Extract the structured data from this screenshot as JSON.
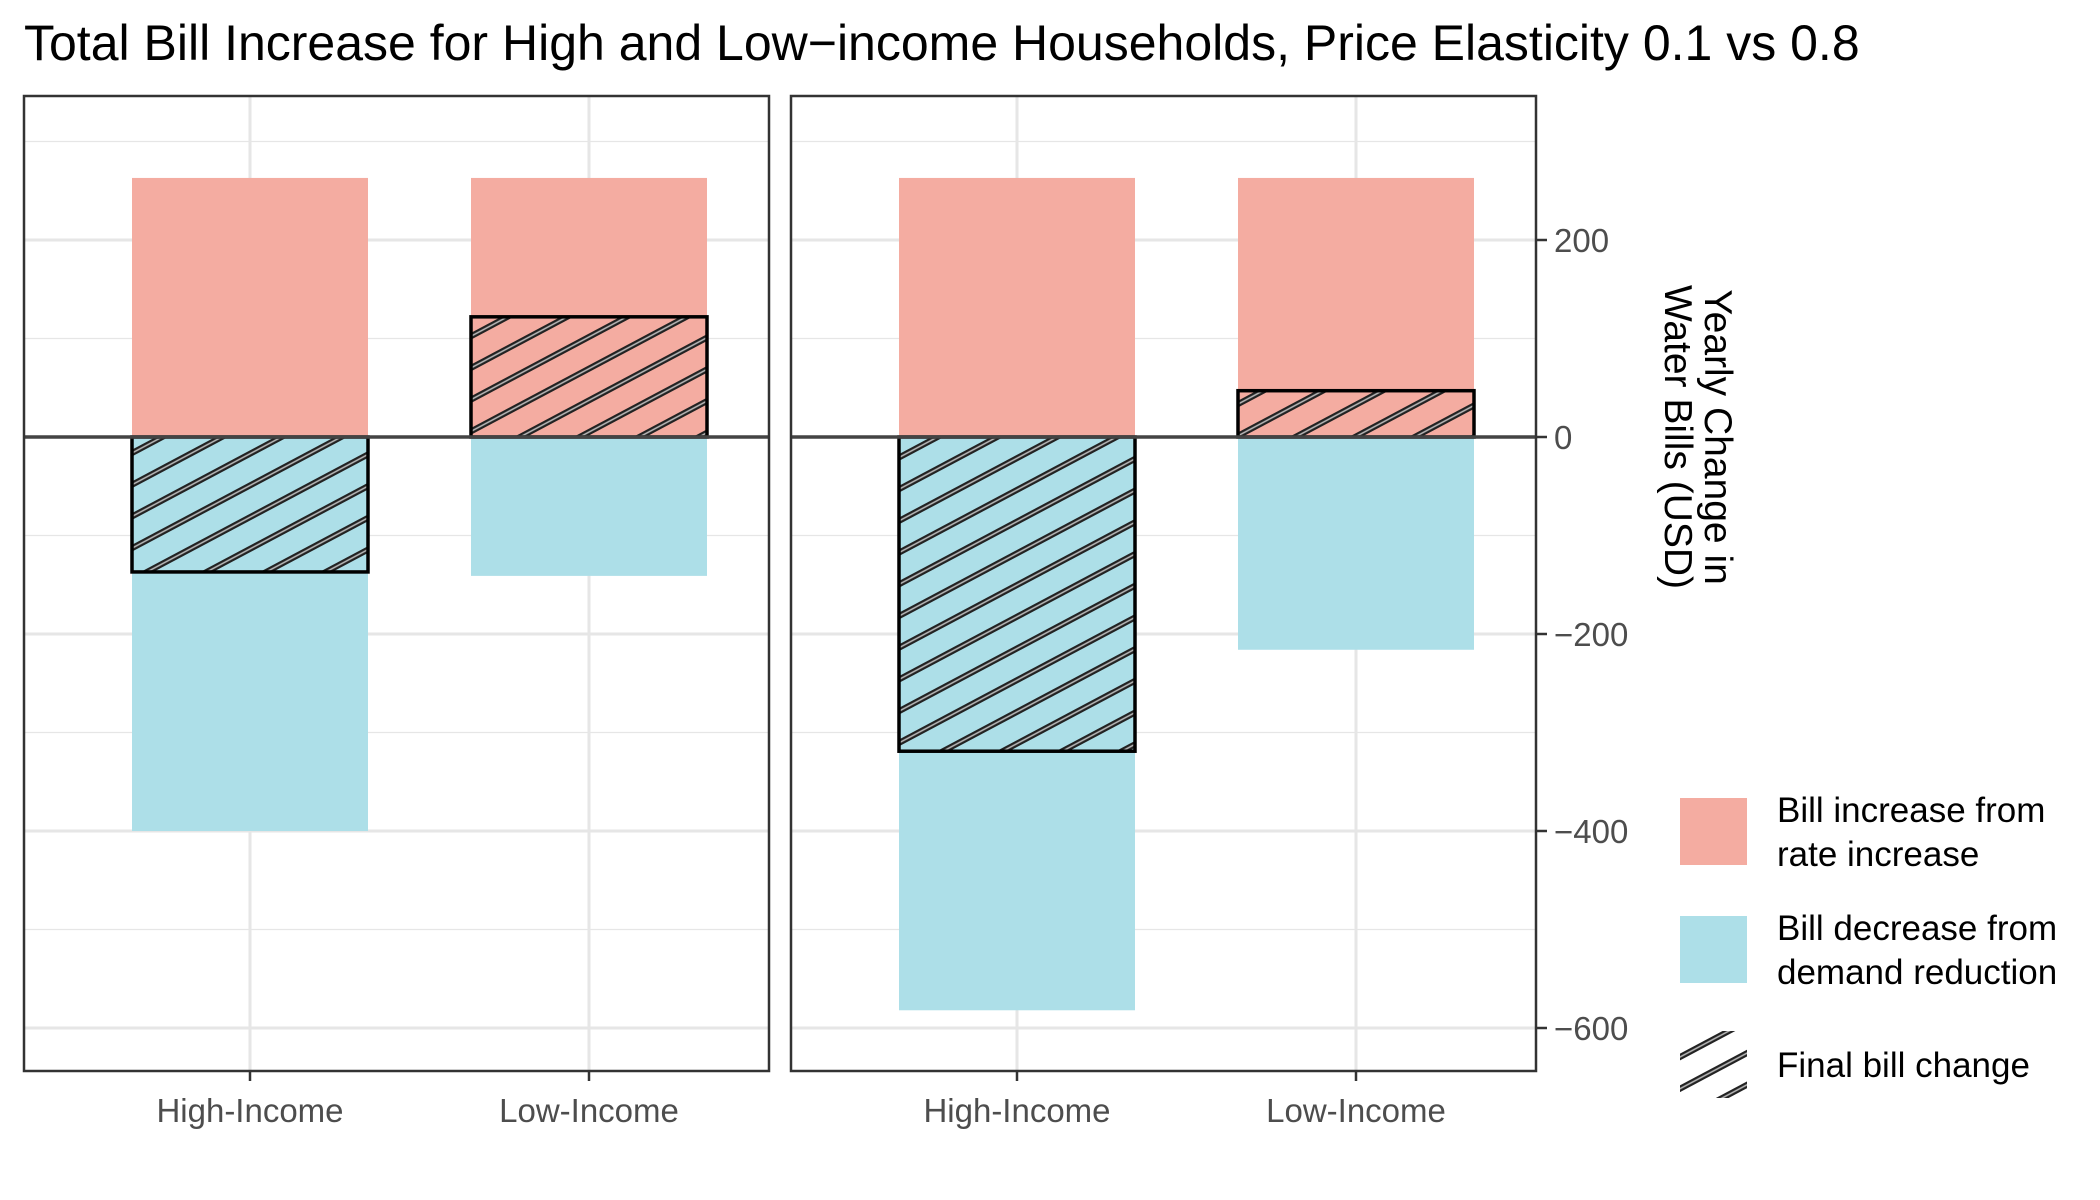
{
  "title": "Total Bill Increase for High and Low−income Households, Price Elasticity 0.1 vs 0.8",
  "chart_data": {
    "type": "bar",
    "title": "Total Bill Increase for High and Low−income Households, Price Elasticity 0.1 vs 0.8",
    "ylabel": "Yearly Change in Water Bills (USD)",
    "ylabel_lines": [
      "Yearly Change in",
      "Water Bills (USD)"
    ],
    "xlabel": "",
    "categories": [
      "High-Income",
      "Low-Income"
    ],
    "ylim": [
      -650,
      345
    ],
    "yticks": [
      200,
      0,
      -200,
      -400,
      -600
    ],
    "ytick_labels": [
      "200",
      "0",
      "−200",
      "−400",
      "−600"
    ],
    "y_axis_position": "right",
    "grid": true,
    "legend_position": "right",
    "colors": {
      "increase": "#f4aca1",
      "decrease": "#addfe8",
      "hatch": "#222222",
      "grid": "#e6e6e6",
      "zero_line": "#444444"
    },
    "legend": [
      {
        "key": "increase",
        "lines": [
          "Bill increase from",
          "rate increase"
        ]
      },
      {
        "key": "decrease",
        "lines": [
          "Bill decrease from",
          "demand reduction"
        ]
      },
      {
        "key": "final",
        "lines": [
          "Final bill change"
        ]
      }
    ],
    "panels": [
      {
        "bars": [
          {
            "category": "High-Income",
            "increase": 263,
            "decrease": -400,
            "final": -137
          },
          {
            "category": "Low-Income",
            "increase": 263,
            "decrease": -141,
            "final": 122
          }
        ]
      },
      {
        "bars": [
          {
            "category": "High-Income",
            "increase": 263,
            "decrease": -582,
            "final": -319
          },
          {
            "category": "Low-Income",
            "increase": 263,
            "decrease": -216,
            "final": 47
          }
        ]
      }
    ]
  }
}
